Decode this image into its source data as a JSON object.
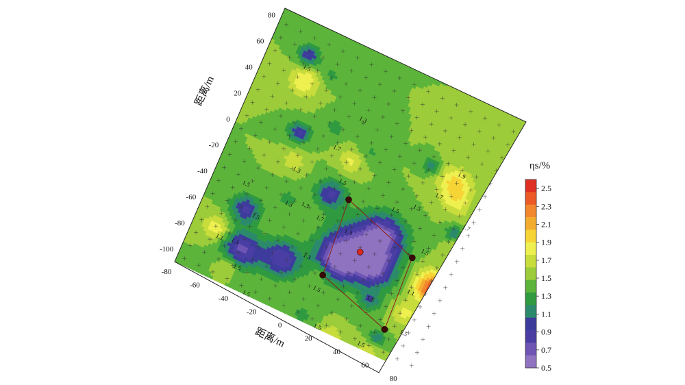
{
  "chart_data": {
    "type": "heatmap",
    "title": "",
    "xlabel": "距离/m",
    "ylabel": "距离/m",
    "x_ticks": [
      "-80",
      "-60",
      "-40",
      "-20",
      "0",
      "20",
      "40",
      "60",
      "80"
    ],
    "y_ticks": [
      "80",
      "60",
      "40",
      "20",
      "0",
      "-20",
      "-40",
      "-60",
      "-80",
      "-100"
    ],
    "xlim": [
      -80,
      90
    ],
    "ylim": [
      -110,
      85
    ],
    "colorbar": {
      "title": "ηs/%",
      "ticks": [
        "2.5",
        "2.3",
        "2.1",
        "1.9",
        "1.7",
        "1.5",
        "1.3",
        "1.1",
        "0.9",
        "0.7",
        "0.5"
      ],
      "range": [
        0.5,
        2.6
      ],
      "colors": [
        "#e03024",
        "#ec5a26",
        "#f2872e",
        "#f4ac2e",
        "#f6d436",
        "#eef050",
        "#c8dc3c",
        "#9ccc3a",
        "#5cb43a",
        "#2f9a40",
        "#2c8a6c",
        "#3d3c9c",
        "#4a3ea4",
        "#6e55b4",
        "#8f73c0"
      ]
    },
    "contour_labels": [
      "1.5",
      "1.3",
      "1.7",
      "1.3",
      "1.9",
      "1.7",
      "1.5",
      "1.7",
      "1.5",
      "1.3",
      "1.3",
      "1.5",
      "1.5",
      "1.3",
      "1.1",
      "1.3",
      "1.5",
      "1.5",
      "1.5",
      "1.5",
      "1.5",
      "1.5",
      "1.7",
      "1.3",
      "1.5",
      "1.1",
      "1.5",
      "1.5"
    ],
    "field": {
      "background": 1.48,
      "anomalies": [
        {
          "x": 24,
          "y": -48,
          "value": 0.7,
          "radius": 14
        },
        {
          "x": 36,
          "y": -30,
          "value": 0.75,
          "radius": 10
        },
        {
          "x": 14,
          "y": -60,
          "value": 0.8,
          "radius": 10
        },
        {
          "x": 40,
          "y": -54,
          "value": 0.9,
          "radius": 9
        },
        {
          "x": -6,
          "y": -20,
          "value": 0.9,
          "radius": 7
        },
        {
          "x": -18,
          "y": -76,
          "value": 0.8,
          "radius": 9
        },
        {
          "x": -44,
          "y": -82,
          "value": 0.75,
          "radius": 9
        },
        {
          "x": -52,
          "y": -55,
          "value": 0.9,
          "radius": 7
        },
        {
          "x": -54,
          "y": 62,
          "value": 0.9,
          "radius": 5
        },
        {
          "x": -40,
          "y": 10,
          "value": 0.9,
          "radius": 5
        },
        {
          "x": 46,
          "y": 28,
          "value": 1.1,
          "radius": 4
        },
        {
          "x": 58,
          "y": -98,
          "value": 1.1,
          "radius": 4
        },
        {
          "x": 44,
          "y": -76,
          "value": 1.1,
          "radius": 5
        },
        {
          "x": 76,
          "y": -8,
          "value": 1.1,
          "radius": 4
        },
        {
          "x": -36,
          "y": 56,
          "value": 1.3,
          "radius": 5
        },
        {
          "x": -20,
          "y": 24,
          "value": 1.3,
          "radius": 6
        },
        {
          "x": 6,
          "y": 18,
          "value": 1.3,
          "radius": 6
        },
        {
          "x": -30,
          "y": -36,
          "value": 1.3,
          "radius": 6
        },
        {
          "x": 8,
          "y": -106,
          "value": 1.3,
          "radius": 6
        },
        {
          "x": 64,
          "y": 24,
          "value": 1.95,
          "radius": 8
        },
        {
          "x": 70,
          "y": 12,
          "value": 1.75,
          "radius": 7
        },
        {
          "x": -50,
          "y": 44,
          "value": 1.9,
          "radius": 7
        },
        {
          "x": 78,
          "y": -50,
          "value": 2.5,
          "radius": 8
        },
        {
          "x": 84,
          "y": -18,
          "value": 1.85,
          "radius": 5
        },
        {
          "x": -2,
          "y": 8,
          "value": 1.8,
          "radius": 6
        },
        {
          "x": -36,
          "y": -10,
          "value": 1.75,
          "radius": 5
        },
        {
          "x": -64,
          "y": -76,
          "value": 1.9,
          "radius": 6
        },
        {
          "x": -48,
          "y": -96,
          "value": 1.75,
          "radius": 5
        },
        {
          "x": 68,
          "y": -74,
          "value": 1.8,
          "radius": 6
        },
        {
          "x": 56,
          "y": -110,
          "value": 1.75,
          "radius": 5
        },
        {
          "x": 30,
          "y": -110,
          "value": 1.75,
          "radius": 5
        },
        {
          "x": 8,
          "y": -72,
          "value": 1.7,
          "radius": 4
        }
      ]
    },
    "markers": [
      {
        "x": 6,
        "y": -18,
        "color": "#3a0a08"
      },
      {
        "x": 58,
        "y": -36,
        "color": "#3a0a08"
      },
      {
        "x": 10,
        "y": -74,
        "color": "#3a0a08"
      },
      {
        "x": 60,
        "y": -90,
        "color": "#3a0a08"
      },
      {
        "x": 26,
        "y": -48,
        "color": "#d8281e"
      }
    ]
  }
}
